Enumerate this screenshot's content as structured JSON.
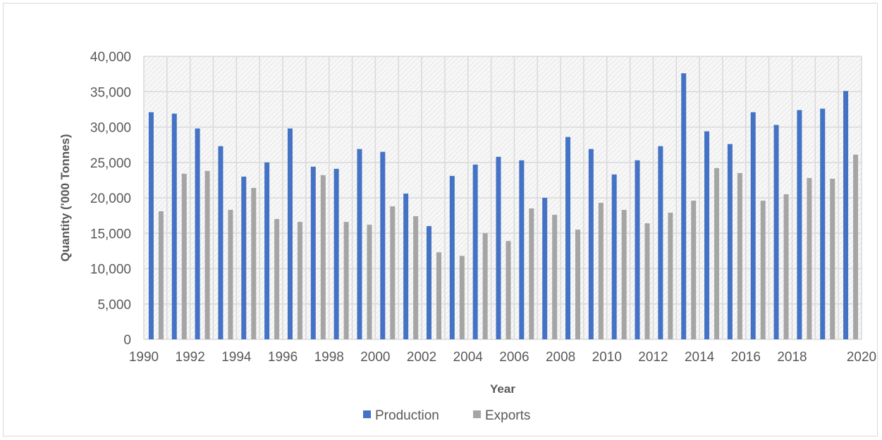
{
  "chart_data": {
    "type": "bar",
    "title": "",
    "xlabel": "Year",
    "ylabel": "Quantity ('000 Tonnes)",
    "ylim": [
      0,
      40000
    ],
    "yticks": [
      "0",
      "5,000",
      "10,000",
      "15,000",
      "20,000",
      "25,000",
      "30,000",
      "35,000",
      "40,000"
    ],
    "ytick_values": [
      0,
      5000,
      10000,
      15000,
      20000,
      25000,
      30000,
      35000,
      40000
    ],
    "categories": [
      "1990",
      "1991",
      "1992",
      "1993",
      "1994",
      "1995",
      "1996",
      "1997",
      "1998",
      "1999",
      "2000",
      "2001",
      "2002",
      "2003",
      "2004",
      "2005",
      "2006",
      "2007",
      "2008",
      "2009",
      "2010",
      "2011",
      "2012",
      "2013",
      "2014",
      "2015",
      "2016",
      "2017",
      "2018",
      "2019",
      "2020"
    ],
    "xtick_labels": [
      "1990",
      "1992",
      "1994",
      "1996",
      "1998",
      "2000",
      "2002",
      "2004",
      "2006",
      "2008",
      "2010",
      "2012",
      "2014",
      "2016",
      "2018",
      "2020"
    ],
    "grid": true,
    "legend_position": "bottom",
    "series": [
      {
        "name": "Production",
        "color": "#4472c4",
        "values": [
          32100,
          31900,
          29800,
          27300,
          23000,
          25000,
          29800,
          24400,
          24100,
          26900,
          26500,
          20600,
          16000,
          23100,
          24700,
          25800,
          25300,
          20000,
          28600,
          26900,
          23300,
          25300,
          27300,
          37600,
          29400,
          27600,
          32100,
          30300,
          32400,
          32600,
          35100
        ]
      },
      {
        "name": "Exports",
        "color": "#a5a5a5",
        "values": [
          18100,
          23400,
          23800,
          18300,
          21400,
          17000,
          16600,
          23200,
          16600,
          16200,
          18800,
          17400,
          12300,
          11800,
          15000,
          13900,
          18500,
          17600,
          15500,
          19300,
          18300,
          16400,
          17900,
          19600,
          24200,
          23500,
          19600,
          20500,
          22800,
          22700,
          26100
        ]
      }
    ]
  }
}
